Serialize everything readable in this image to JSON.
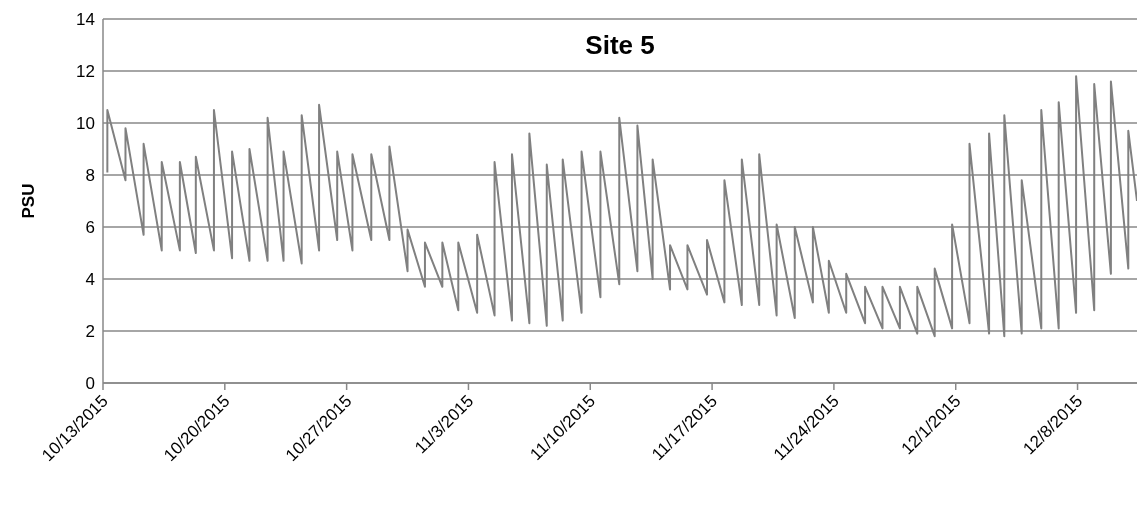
{
  "chart_data": {
    "type": "line",
    "title": "Site 5",
    "ylabel": "PSU",
    "x": [
      "2015-10-13T06:00",
      "2015-10-13T06:00",
      "2015-10-14T07:00",
      "2015-10-14T07:00",
      "2015-10-15T08:00",
      "2015-10-15T08:00",
      "2015-10-16T09:00",
      "2015-10-16T09:00",
      "2015-10-17T10:00",
      "2015-10-17T10:00",
      "2015-10-18T08:00",
      "2015-10-18T08:00",
      "2015-10-19T09:00",
      "2015-10-19T09:00",
      "2015-10-20T10:00",
      "2015-10-20T10:00",
      "2015-10-21T10:00",
      "2015-10-21T10:00",
      "2015-10-22T11:00",
      "2015-10-22T11:00",
      "2015-10-23T09:00",
      "2015-10-23T09:00",
      "2015-10-24T10:00",
      "2015-10-24T10:00",
      "2015-10-25T10:00",
      "2015-10-25T10:00",
      "2015-10-26T11:00",
      "2015-10-26T11:00",
      "2015-10-27T08:00",
      "2015-10-27T08:00",
      "2015-10-28T10:00",
      "2015-10-28T10:00",
      "2015-10-29T11:00",
      "2015-10-29T11:00",
      "2015-10-30T12:00",
      "2015-10-30T12:00",
      "2015-10-31T12:00",
      "2015-10-31T12:00",
      "2015-11-01T12:00",
      "2015-11-01T12:00",
      "2015-11-02T10:00",
      "2015-11-02T10:00",
      "2015-11-03T12:00",
      "2015-11-03T12:00",
      "2015-11-04T12:00",
      "2015-11-04T12:00",
      "2015-11-05T12:00",
      "2015-11-05T12:00",
      "2015-11-06T12:00",
      "2015-11-06T12:00",
      "2015-11-07T12:00",
      "2015-11-07T12:00",
      "2015-11-08T10:00",
      "2015-11-08T10:00",
      "2015-11-09T12:00",
      "2015-11-09T12:00",
      "2015-11-10T14:00",
      "2015-11-10T14:00",
      "2015-11-11T16:00",
      "2015-11-11T16:00",
      "2015-11-12T17:00",
      "2015-11-12T17:00",
      "2015-11-13T14:00",
      "2015-11-13T14:00",
      "2015-11-14T14:00",
      "2015-11-14T14:00",
      "2015-11-15T14:00",
      "2015-11-15T14:00",
      "2015-11-16T17:00",
      "2015-11-16T17:00",
      "2015-11-17T17:00",
      "2015-11-17T17:00",
      "2015-11-18T17:00",
      "2015-11-18T17:00",
      "2015-11-19T17:00",
      "2015-11-19T17:00",
      "2015-11-20T17:00",
      "2015-11-20T17:00",
      "2015-11-21T18:00",
      "2015-11-21T18:00",
      "2015-11-22T19:00",
      "2015-11-22T19:00",
      "2015-11-23T17:00",
      "2015-11-23T17:00",
      "2015-11-24T17:00",
      "2015-11-24T17:00",
      "2015-11-25T19:00",
      "2015-11-25T19:00",
      "2015-11-26T19:00",
      "2015-11-26T19:00",
      "2015-11-27T19:00",
      "2015-11-27T19:00",
      "2015-11-28T19:00",
      "2015-11-28T19:00",
      "2015-11-29T19:00",
      "2015-11-29T19:00",
      "2015-11-30T19:00",
      "2015-11-30T19:00",
      "2015-12-01T19:00",
      "2015-12-01T19:00",
      "2015-12-02T22:00",
      "2015-12-02T22:00",
      "2015-12-03T19:00",
      "2015-12-03T19:00",
      "2015-12-04T19:00",
      "2015-12-04T19:00",
      "2015-12-05T22:00",
      "2015-12-05T22:00",
      "2015-12-06T22:00",
      "2015-12-06T22:00",
      "2015-12-07T22:00",
      "2015-12-07T22:00",
      "2015-12-08T23:00",
      "2015-12-08T23:00",
      "2015-12-09T22:00",
      "2015-12-09T22:00",
      "2015-12-10T22:00",
      "2015-12-10T22:00",
      "2015-12-11T10:00"
    ],
    "series": [
      {
        "color": "#808080",
        "values": [
          8.1,
          10.5,
          7.8,
          9.8,
          5.7,
          9.2,
          5.1,
          8.5,
          5.1,
          8.5,
          5.0,
          8.7,
          5.1,
          10.5,
          4.8,
          8.9,
          4.7,
          9.0,
          4.7,
          10.2,
          4.7,
          8.9,
          4.6,
          10.3,
          5.1,
          10.7,
          5.5,
          8.9,
          5.1,
          8.8,
          5.5,
          8.8,
          5.5,
          9.1,
          4.3,
          5.9,
          3.7,
          5.4,
          3.7,
          5.4,
          2.8,
          5.4,
          2.7,
          5.7,
          2.6,
          8.5,
          2.4,
          8.8,
          2.3,
          9.6,
          2.2,
          8.4,
          2.4,
          8.6,
          2.7,
          8.9,
          3.3,
          8.9,
          3.8,
          10.2,
          4.3,
          9.9,
          4.0,
          8.6,
          3.6,
          5.3,
          3.6,
          5.3,
          3.4,
          5.5,
          3.1,
          7.8,
          3.0,
          8.6,
          3.0,
          8.8,
          2.6,
          6.1,
          2.5,
          6.0,
          3.1,
          6.0,
          2.7,
          4.7,
          2.7,
          4.2,
          2.3,
          3.7,
          2.1,
          3.7,
          2.1,
          3.7,
          1.9,
          3.7,
          1.8,
          4.4,
          2.1,
          6.1,
          2.3,
          9.2,
          1.9,
          9.6,
          1.8,
          10.3,
          1.9,
          7.8,
          2.1,
          10.5,
          2.1,
          10.8,
          2.7,
          11.8,
          2.8,
          11.5,
          4.2,
          11.6,
          4.4,
          9.7,
          7.0
        ]
      }
    ],
    "xlim": [
      "2015-10-13",
      "2015-12-11T10:00"
    ],
    "xticks": [
      {
        "value": "2015-10-13",
        "label": "10/13/2015"
      },
      {
        "value": "2015-10-20",
        "label": "10/20/2015"
      },
      {
        "value": "2015-10-27",
        "label": "10/27/2015"
      },
      {
        "value": "2015-11-03",
        "label": "11/3/2015"
      },
      {
        "value": "2015-11-10",
        "label": "11/10/2015"
      },
      {
        "value": "2015-11-17",
        "label": "11/17/2015"
      },
      {
        "value": "2015-11-24",
        "label": "11/24/2015"
      },
      {
        "value": "2015-12-01",
        "label": "12/1/2015"
      },
      {
        "value": "2015-12-08",
        "label": "12/8/2015"
      }
    ],
    "ylim": [
      0,
      14
    ],
    "yticks": [
      0,
      2,
      4,
      6,
      8,
      10,
      12,
      14
    ],
    "grid": "y"
  }
}
